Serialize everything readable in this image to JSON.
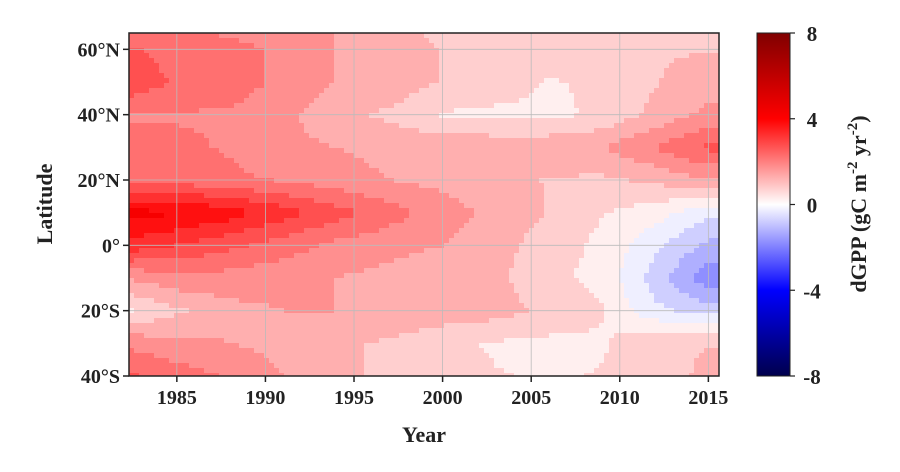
{
  "chart_data": {
    "type": "heatmap",
    "style": "filled-contour",
    "xlabel": "Year",
    "ylabel": "Latitude",
    "xlim": [
      1982.3,
      2015.6
    ],
    "ylim": [
      -40,
      65
    ],
    "x_ticks": [
      1985,
      1990,
      1995,
      2000,
      2005,
      2010,
      2015
    ],
    "x_tick_labels": [
      "1985",
      "1990",
      "1995",
      "2000",
      "2005",
      "2010",
      "2015"
    ],
    "y_ticks": [
      60,
      40,
      20,
      0,
      -20,
      -40
    ],
    "y_tick_labels": [
      "60°N",
      "40°N",
      "20°N",
      "0°",
      "20°S",
      "40°S"
    ],
    "grid": true,
    "colorbar": {
      "label_main": "dGPP (gC m",
      "label_exp1": "-2",
      "label_mid": " yr",
      "label_exp2": "-2",
      "label_end": ")",
      "range": [
        -8,
        8
      ],
      "ticks": [
        8,
        4,
        0,
        -4,
        -8
      ],
      "tick_labels": [
        "8",
        "4",
        "0",
        "-4",
        "-8"
      ],
      "colormap": "seismic",
      "colors": {
        "low": "#00004c",
        "mid_low": "#0000ff",
        "zero": "#ffffff",
        "mid_high": "#ff0000",
        "high": "#800000"
      }
    },
    "x": [
      1982,
      1985,
      1988,
      1991,
      1994,
      1997,
      2000,
      2003,
      2006,
      2009,
      2012,
      2015
    ],
    "y": [
      -40,
      -30,
      -20,
      -10,
      0,
      10,
      20,
      30,
      40,
      50,
      60,
      65
    ],
    "z": [
      [
        3.5,
        3.0,
        2.6,
        2.0,
        1.5,
        1.2,
        0.9,
        0.7,
        0.6,
        0.7,
        1.0,
        1.5
      ],
      [
        2.5,
        2.2,
        2.0,
        1.8,
        1.5,
        1.2,
        0.8,
        0.6,
        0.5,
        0.6,
        1.2,
        1.3
      ],
      [
        0.5,
        1.2,
        1.8,
        2.0,
        2.0,
        2.0,
        1.8,
        1.6,
        1.2,
        0.7,
        -0.5,
        -1.0
      ],
      [
        2.0,
        2.5,
        2.4,
        2.2,
        2.0,
        1.8,
        1.5,
        1.5,
        0.8,
        0.5,
        -1.0,
        -2.5
      ],
      [
        4.5,
        4.0,
        3.5,
        3.0,
        2.5,
        2.2,
        2.0,
        1.6,
        1.0,
        0.5,
        -0.5,
        -1.5
      ],
      [
        5.6,
        5.4,
        5.0,
        4.3,
        3.6,
        3.0,
        2.3,
        1.8,
        1.3,
        0.7,
        0.3,
        -0.5
      ],
      [
        3.0,
        3.0,
        2.8,
        2.6,
        2.3,
        2.0,
        1.8,
        1.5,
        1.3,
        1.2,
        1.5,
        2.0
      ],
      [
        3.0,
        2.8,
        2.6,
        2.2,
        2.0,
        1.8,
        1.8,
        1.8,
        1.8,
        2.0,
        2.7,
        3.5
      ],
      [
        2.6,
        2.6,
        2.6,
        2.2,
        1.5,
        1.2,
        0.6,
        0.5,
        0.5,
        0.8,
        1.5,
        2.2
      ],
      [
        4.0,
        3.2,
        3.0,
        2.5,
        2.0,
        1.8,
        1.3,
        1.1,
        0.6,
        0.8,
        1.3,
        1.6
      ],
      [
        3.5,
        3.0,
        3.0,
        2.5,
        2.0,
        1.8,
        1.3,
        1.3,
        1.3,
        1.3,
        1.3,
        1.3
      ],
      [
        3.0,
        3.0,
        2.5,
        2.2,
        2.0,
        1.5,
        1.2,
        1.2,
        1.2,
        1.2,
        1.2,
        1.2
      ]
    ]
  }
}
